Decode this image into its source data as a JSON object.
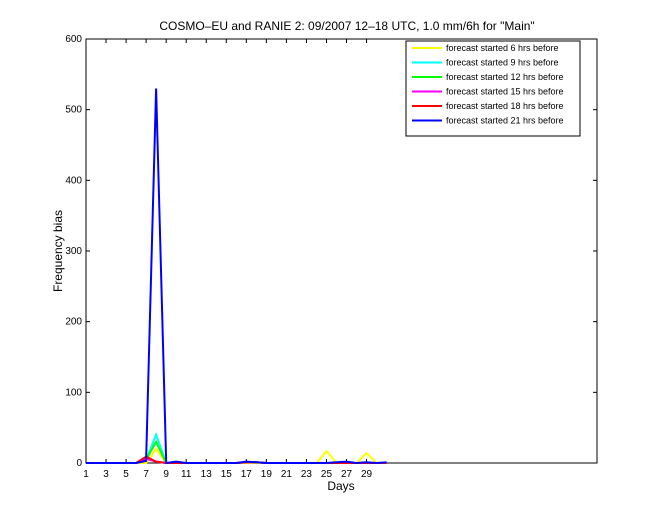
{
  "chart_data": {
    "type": "line",
    "title": "COSMO–EU and RANIE 2: 09/2007 12–18 UTC, 1.0 mm/6h for \"Main\"",
    "xlabel": "Days",
    "ylabel": "Frequency bias",
    "xlim": [
      1,
      52
    ],
    "ylim": [
      0,
      600
    ],
    "x_ticks": [
      1,
      3,
      5,
      7,
      9,
      11,
      13,
      15,
      17,
      19,
      21,
      23,
      25,
      27,
      29
    ],
    "y_ticks": [
      0,
      100,
      200,
      300,
      400,
      500,
      600
    ],
    "legend_position": "top-right",
    "grid": false,
    "x": [
      1,
      2,
      3,
      4,
      5,
      6,
      7,
      8,
      9,
      10,
      11,
      12,
      13,
      14,
      15,
      16,
      17,
      18,
      19,
      20,
      21,
      22,
      23,
      24,
      25,
      26,
      27,
      28,
      29,
      30,
      31
    ],
    "series": [
      {
        "name": "forecast started 6 hrs before",
        "color": "#ffff00",
        "values": [
          0,
          0,
          0,
          0,
          0,
          0,
          0,
          20,
          0,
          0,
          0,
          0,
          0,
          0,
          0,
          0,
          0,
          0,
          0,
          0,
          0,
          0,
          0,
          0,
          17,
          0,
          0,
          0,
          14,
          0,
          0
        ]
      },
      {
        "name": "forecast started 9 hrs before",
        "color": "#00ffff",
        "values": [
          0,
          0,
          0,
          0,
          0,
          0,
          4,
          40,
          0,
          0,
          0,
          0,
          0,
          0,
          0,
          0,
          1,
          1,
          0,
          0,
          0,
          0,
          0,
          0,
          0,
          0,
          0,
          0,
          0,
          0,
          0
        ]
      },
      {
        "name": "forecast started 12 hrs before",
        "color": "#00ff00",
        "values": [
          0,
          0,
          0,
          0,
          0,
          0,
          5,
          30,
          0,
          0,
          0,
          0,
          0,
          0,
          0,
          0,
          1,
          1,
          0,
          0,
          0,
          0,
          0,
          0,
          0,
          0,
          0,
          0,
          0,
          0,
          0
        ]
      },
      {
        "name": "forecast started 15 hrs before",
        "color": "#ff00ff",
        "values": [
          0,
          0,
          0,
          0,
          0,
          0,
          6,
          2,
          0,
          0,
          0,
          0,
          0,
          0,
          0,
          0,
          1,
          1,
          0,
          0,
          0,
          0,
          0,
          0,
          0,
          0,
          0,
          0,
          0,
          0,
          0
        ]
      },
      {
        "name": "forecast started 18 hrs before",
        "color": "#ff0000",
        "values": [
          0,
          0,
          0,
          0,
          0,
          0,
          9,
          2,
          0,
          0,
          0,
          0,
          0,
          0,
          0,
          0,
          1,
          1,
          0,
          0,
          0,
          0,
          0,
          0,
          0,
          0,
          0,
          0,
          0,
          0,
          0
        ]
      },
      {
        "name": "forecast started 21 hrs before",
        "color": "#0000ff",
        "values": [
          0,
          0,
          0,
          0,
          0,
          0,
          3,
          530,
          0,
          2,
          0,
          0,
          0,
          0,
          0,
          0,
          2,
          1,
          0,
          0,
          0,
          0,
          0,
          0,
          0,
          1,
          2,
          0,
          1,
          0,
          1
        ]
      }
    ]
  }
}
